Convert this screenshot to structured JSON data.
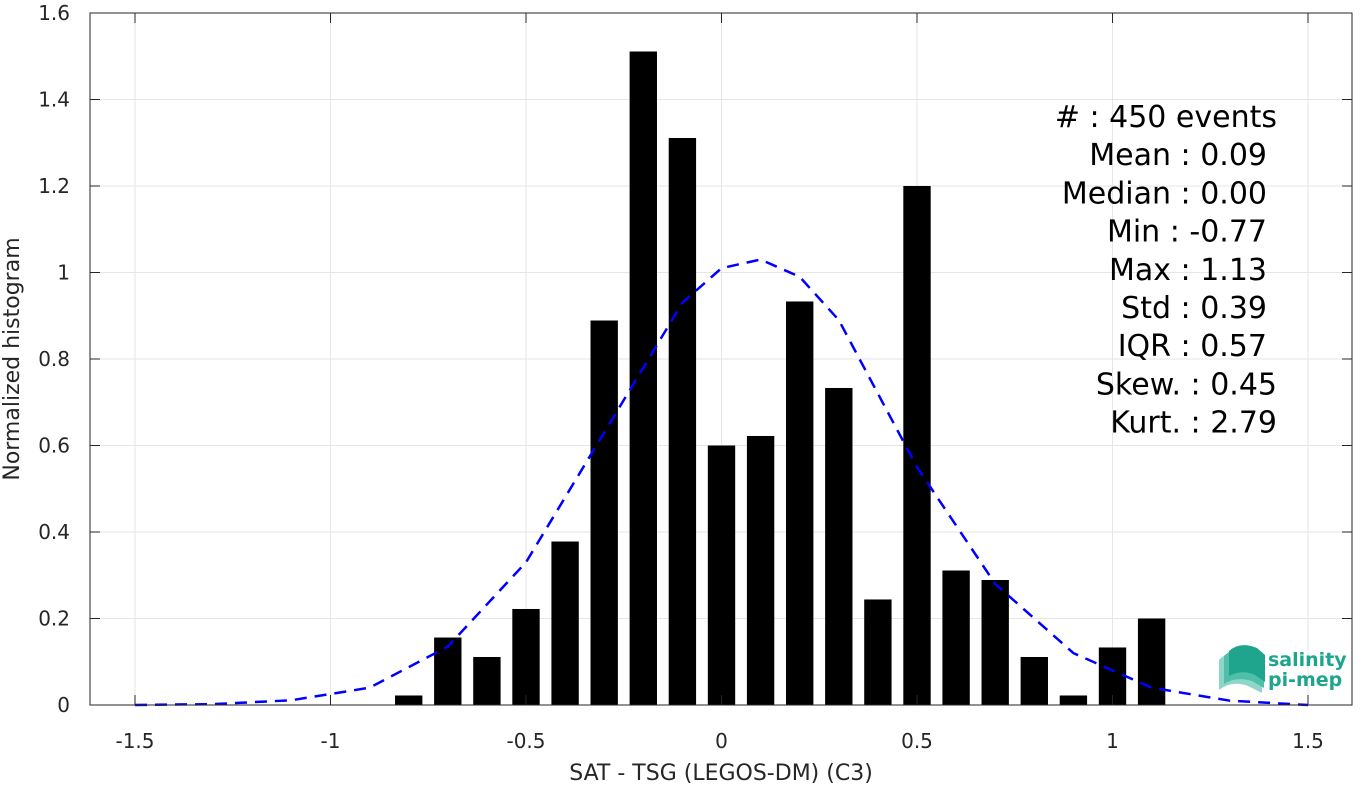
{
  "chart_data": {
    "type": "bar",
    "xlabel": "SAT - TSG (LEGOS-DM) (C3)",
    "ylabel": "Normalized histogram",
    "xlim": [
      -1.5,
      1.5
    ],
    "ylim": [
      0,
      1.6
    ],
    "xticks": [
      -1.5,
      -1,
      -0.5,
      0,
      0.5,
      1,
      1.5
    ],
    "xtick_labels": [
      "-1.5",
      "-1",
      "-0.5",
      "0",
      "0.5",
      "1",
      "1.5"
    ],
    "yticks": [
      0,
      0.2,
      0.4,
      0.6,
      0.8,
      1,
      1.2,
      1.4,
      1.6
    ],
    "ytick_labels": [
      "0",
      "0.2",
      "0.4",
      "0.6",
      "0.8",
      "1",
      "1.2",
      "1.4",
      "1.6"
    ],
    "grid": true,
    "bar_color": "#000000",
    "bar_width": 0.07,
    "bars": {
      "x": [
        -0.8,
        -0.7,
        -0.6,
        -0.5,
        -0.4,
        -0.3,
        -0.2,
        -0.1,
        0.0,
        0.1,
        0.2,
        0.3,
        0.4,
        0.5,
        0.6,
        0.7,
        0.8,
        0.9,
        1.0,
        1.1
      ],
      "y": [
        0.022,
        0.156,
        0.111,
        0.222,
        0.378,
        0.889,
        1.511,
        1.311,
        0.6,
        0.622,
        0.933,
        0.733,
        0.244,
        1.2,
        0.311,
        0.289,
        0.111,
        0.022,
        0.133,
        0.2
      ]
    },
    "fit_curve": {
      "style": "dashed",
      "color": "#0000ff",
      "x": [
        -1.5,
        -1.3,
        -1.1,
        -0.9,
        -0.7,
        -0.5,
        -0.3,
        -0.1,
        0.0,
        0.1,
        0.2,
        0.3,
        0.5,
        0.7,
        0.9,
        1.1,
        1.3,
        1.5
      ],
      "y": [
        0.0,
        0.002,
        0.011,
        0.04,
        0.135,
        0.33,
        0.63,
        0.93,
        1.01,
        1.03,
        0.99,
        0.89,
        0.55,
        0.28,
        0.12,
        0.04,
        0.01,
        0.0
      ]
    },
    "stats": [
      "#  : 450 events",
      "Mean : 0.09",
      "Median : 0.00",
      "Min : -0.77",
      "Max : 1.13",
      "Std : 0.39",
      "IQR : 0.57",
      "Skew. : 0.45",
      "Kurt. : 2.79"
    ]
  },
  "logo": {
    "line1": "salinity",
    "line2": "pi-mep",
    "color": "#1fa58e"
  }
}
